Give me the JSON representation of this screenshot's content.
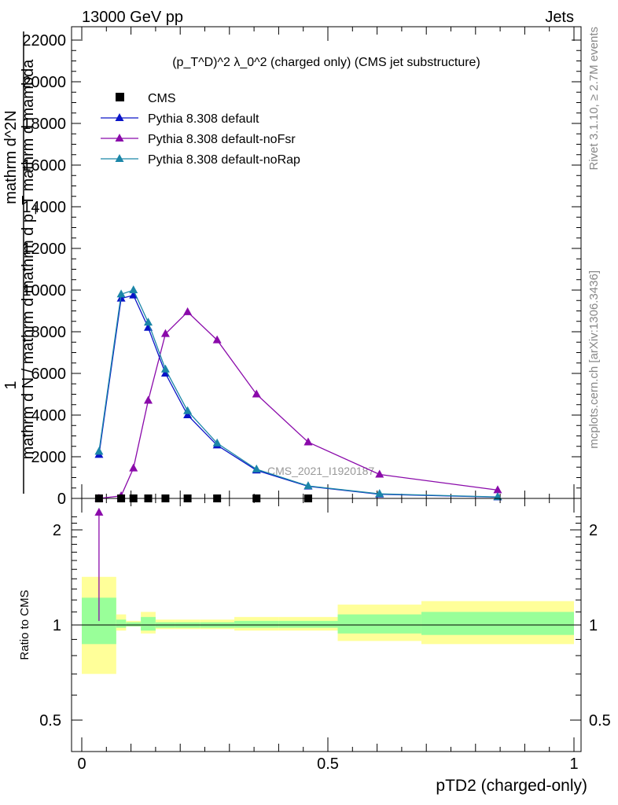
{
  "header": {
    "left": "13000 GeV pp",
    "right": "Jets"
  },
  "side_labels": {
    "rivet": "Rivet 3.1.10, ≥ 2.7M events",
    "mcplots": "mcplots.cern.ch [arXiv:1306.3436]"
  },
  "watermark": "CMS_2021_I1920187",
  "colors": {
    "cms": "#000000",
    "default": "#0a14c8",
    "noFsr": "#8a0aaa",
    "noRap": "#1b86a8",
    "band_outer": "#ffff99",
    "band_inner": "#99ff99"
  },
  "chart_data": [
    {
      "type": "line",
      "title": "(p_T^D)^2 λ_0^2 (charged only) (CMS jet substructure)",
      "ylabel_lines": [
        "1",
        "mathrm d N / mathrm d mathrm d p_T mathrm d mambda",
        "mathrm d^2N"
      ],
      "xlim": [
        0,
        1
      ],
      "ylim": [
        0,
        22500
      ],
      "yticks": [
        0,
        2000,
        4000,
        6000,
        8000,
        10000,
        12000,
        14000,
        16000,
        18000,
        20000,
        22000
      ],
      "ytick_labels": [
        "0",
        "2000",
        "4000",
        "6000",
        "8000",
        "10000",
        "12000",
        "14000",
        "16000",
        "18000",
        "20000",
        "22000"
      ],
      "legend_position": "top-left",
      "x": [
        0.035,
        0.08,
        0.105,
        0.135,
        0.17,
        0.215,
        0.275,
        0.355,
        0.46,
        0.605,
        0.845
      ],
      "series": [
        {
          "name": "CMS",
          "marker": "square",
          "values": [
            0,
            0,
            0,
            0,
            0,
            0,
            0,
            0,
            0,
            null,
            null
          ]
        },
        {
          "name": "Pythia 8.308 default",
          "marker": "triangle",
          "values": [
            2100,
            9600,
            9750,
            8200,
            6000,
            4000,
            2550,
            1350,
            580,
            200,
            60
          ]
        },
        {
          "name": "Pythia 8.308 default-noFsr",
          "marker": "triangle",
          "values": [
            0,
            120,
            1450,
            4700,
            7900,
            8950,
            7600,
            5000,
            2700,
            1150,
            400
          ]
        },
        {
          "name": "Pythia 8.308 default-noRap",
          "marker": "triangle",
          "values": [
            2250,
            9800,
            10000,
            8450,
            6200,
            4200,
            2650,
            1400,
            600,
            220,
            70
          ]
        }
      ]
    },
    {
      "type": "area",
      "ylabel": "Ratio to CMS",
      "xlabel": "pTD2 (charged-only)",
      "xlim": [
        0,
        1
      ],
      "ylim": [
        0.39,
        2.3
      ],
      "xticks": [
        0,
        0.5,
        1
      ],
      "xtick_labels": [
        "0",
        "0.5",
        "1"
      ],
      "yticks": [
        0.5,
        1,
        2
      ],
      "ytick_labels": [
        "0.5",
        "1",
        "2"
      ],
      "bins": [
        {
          "x": [
            0.0,
            0.07
          ],
          "outer": [
            0.7,
            1.42
          ],
          "inner": [
            0.87,
            1.22
          ]
        },
        {
          "x": [
            0.07,
            0.09
          ],
          "outer": [
            0.96,
            1.08
          ],
          "inner": [
            0.98,
            1.04
          ]
        },
        {
          "x": [
            0.09,
            0.12
          ],
          "outer": [
            0.99,
            1.03
          ],
          "inner": [
            0.99,
            1.02
          ]
        },
        {
          "x": [
            0.12,
            0.15
          ],
          "outer": [
            0.94,
            1.1
          ],
          "inner": [
            0.96,
            1.06
          ]
        },
        {
          "x": [
            0.15,
            0.19
          ],
          "outer": [
            0.97,
            1.04
          ],
          "inner": [
            0.98,
            1.02
          ]
        },
        {
          "x": [
            0.19,
            0.24
          ],
          "outer": [
            0.97,
            1.04
          ],
          "inner": [
            0.98,
            1.02
          ]
        },
        {
          "x": [
            0.24,
            0.31
          ],
          "outer": [
            0.97,
            1.04
          ],
          "inner": [
            0.98,
            1.02
          ]
        },
        {
          "x": [
            0.31,
            0.4
          ],
          "outer": [
            0.96,
            1.06
          ],
          "inner": [
            0.98,
            1.03
          ]
        },
        {
          "x": [
            0.4,
            0.52
          ],
          "outer": [
            0.96,
            1.06
          ],
          "inner": [
            0.98,
            1.03
          ]
        },
        {
          "x": [
            0.52,
            0.69
          ],
          "outer": [
            0.89,
            1.16
          ],
          "inner": [
            0.94,
            1.08
          ]
        },
        {
          "x": [
            0.69,
            1.0
          ],
          "outer": [
            0.87,
            1.19
          ],
          "inner": [
            0.93,
            1.1
          ]
        }
      ],
      "reference_line": 1,
      "ratio_point": {
        "x": 0.035,
        "y": 1.03,
        "err_high": 2.27
      }
    }
  ]
}
